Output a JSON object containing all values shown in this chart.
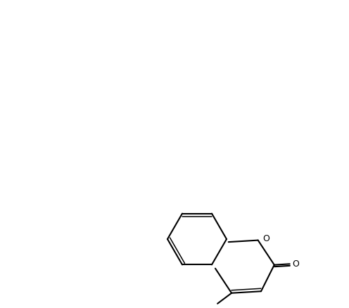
{
  "figsize": [
    4.96,
    4.38
  ],
  "dpi": 100,
  "bg_color": "#ffffff",
  "line_color": "#000000",
  "line_width": 1.5,
  "font_size": 9,
  "bold_font_size": 9
}
